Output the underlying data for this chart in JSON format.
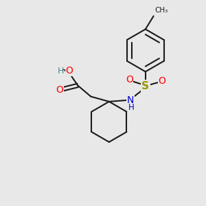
{
  "bg_color": "#e8e8e8",
  "bond_color": "#1a1a1a",
  "o_color": "#ff0000",
  "n_color": "#0000cc",
  "s_color": "#999900",
  "h_color": "#4a8888",
  "figsize": [
    3.0,
    3.0
  ],
  "dpi": 100,
  "xlim": [
    0,
    10
  ],
  "ylim": [
    0,
    10
  ]
}
